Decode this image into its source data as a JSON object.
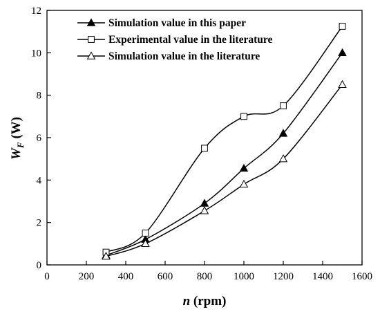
{
  "chart_data": {
    "type": "line",
    "title": "",
    "xlabel": {
      "symbol": "n",
      "unit": " (rpm)"
    },
    "ylabel": {
      "symbol": "W",
      "subscript": "F",
      "unit": " (W)"
    },
    "xlim": [
      0,
      1600
    ],
    "ylim": [
      0,
      12
    ],
    "xticks": [
      0,
      200,
      400,
      600,
      800,
      1000,
      1200,
      1400,
      1600
    ],
    "yticks": [
      0,
      2,
      4,
      6,
      8,
      10,
      12
    ],
    "grid": false,
    "legend_position": "top",
    "series": [
      {
        "name": "Simulation value in this paper",
        "marker": "filled-triangle",
        "x": [
          300,
          500,
          800,
          1000,
          1200,
          1500
        ],
        "y": [
          0.45,
          1.2,
          2.9,
          4.55,
          6.2,
          10.0
        ]
      },
      {
        "name": "Experimental value in the literature",
        "marker": "open-square",
        "x": [
          300,
          500,
          800,
          1000,
          1200,
          1500
        ],
        "y": [
          0.6,
          1.5,
          5.5,
          7.0,
          7.5,
          11.25
        ]
      },
      {
        "name": "Simulation value in the literature",
        "marker": "open-triangle",
        "x": [
          300,
          500,
          800,
          1000,
          1200,
          1500
        ],
        "y": [
          0.4,
          1.0,
          2.55,
          3.8,
          5.0,
          8.5
        ]
      }
    ]
  }
}
